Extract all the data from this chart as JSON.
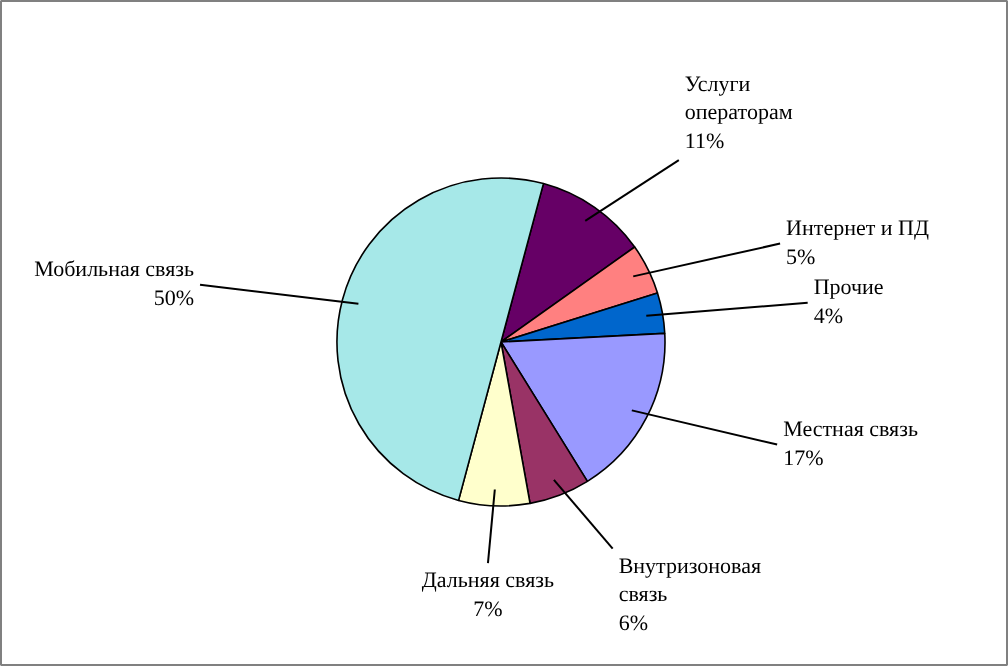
{
  "chart_data": {
    "type": "pie",
    "categories": [
      "Услуги операторам",
      "Интернет и ПД",
      "Прочие",
      "Местная связь",
      "Внутризоновая связь",
      "Дальняя связь",
      "Мобильная связь"
    ],
    "values": [
      11,
      5,
      4,
      17,
      6,
      7,
      50
    ],
    "value_labels": [
      "11%",
      "5%",
      "4%",
      "17%",
      "6%",
      "7%",
      "50%"
    ],
    "colors": [
      "#660066",
      "#ff8080",
      "#0066cc",
      "#9999ff",
      "#993366",
      "#ffffcc",
      "#a6e8e8"
    ]
  }
}
